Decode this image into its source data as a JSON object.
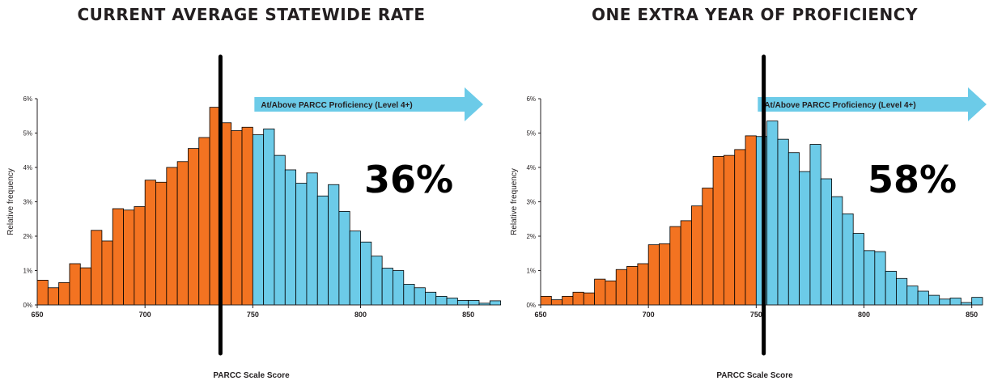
{
  "colors": {
    "below": "#f37321",
    "above": "#6ccbe8",
    "arrow": "#6ccbe8",
    "line": "#000000",
    "axis": "#231f20"
  },
  "chart_data": [
    {
      "type": "bar",
      "title": "CURRENT AVERAGE STATEWIDE RATE",
      "xlabel": "PARCC Scale Score",
      "ylabel": "Relative frequency",
      "xlim": [
        650,
        855
      ],
      "ylim": [
        0,
        6
      ],
      "xticks": [
        "650",
        "700",
        "750",
        "800",
        "850"
      ],
      "yticks": [
        "0%",
        "1%",
        "2%",
        "3%",
        "4%",
        "5%",
        "6%"
      ],
      "bin_width": 5,
      "bin_start": 650,
      "cutoff": 750,
      "marker_score": 735,
      "annotation": "At/Above PARCC Proficiency  (Level 4+)",
      "big_value": "36%",
      "values": [
        0.72,
        0.5,
        0.65,
        1.2,
        1.08,
        2.17,
        1.86,
        2.8,
        2.76,
        2.86,
        3.63,
        3.57,
        4.0,
        4.17,
        4.55,
        4.87,
        5.75,
        5.3,
        5.07,
        5.17,
        4.95,
        5.12,
        4.35,
        3.93,
        3.54,
        3.84,
        3.17,
        3.5,
        2.72,
        2.15,
        1.83,
        1.42,
        1.07,
        1.0,
        0.6,
        0.5,
        0.37,
        0.25,
        0.2,
        0.13,
        0.13,
        0.05,
        0.12
      ]
    },
    {
      "type": "bar",
      "title": "ONE EXTRA YEAR OF PROFICIENCY",
      "xlabel": "PARCC Scale Score",
      "ylabel": "Relative frequency",
      "xlim": [
        650,
        855
      ],
      "ylim": [
        0,
        6
      ],
      "xticks": [
        "650",
        "700",
        "750",
        "800",
        "850"
      ],
      "yticks": [
        "0%",
        "1%",
        "2%",
        "3%",
        "4%",
        "5%",
        "6%"
      ],
      "bin_width": 5,
      "bin_start": 650,
      "cutoff": 750,
      "marker_score": 753.5,
      "annotation": "At/Above PARCC Proficiency  (Level 4+)",
      "big_value": "58%",
      "values": [
        0.25,
        0.15,
        0.25,
        0.37,
        0.35,
        0.75,
        0.7,
        1.03,
        1.12,
        1.2,
        1.75,
        1.78,
        2.28,
        2.45,
        2.88,
        3.4,
        4.32,
        4.35,
        4.52,
        4.92,
        4.9,
        5.35,
        4.82,
        4.43,
        3.88,
        4.67,
        3.67,
        3.15,
        2.65,
        2.08,
        1.58,
        1.55,
        0.98,
        0.77,
        0.55,
        0.4,
        0.28,
        0.17,
        0.2,
        0.07,
        0.22
      ]
    }
  ]
}
